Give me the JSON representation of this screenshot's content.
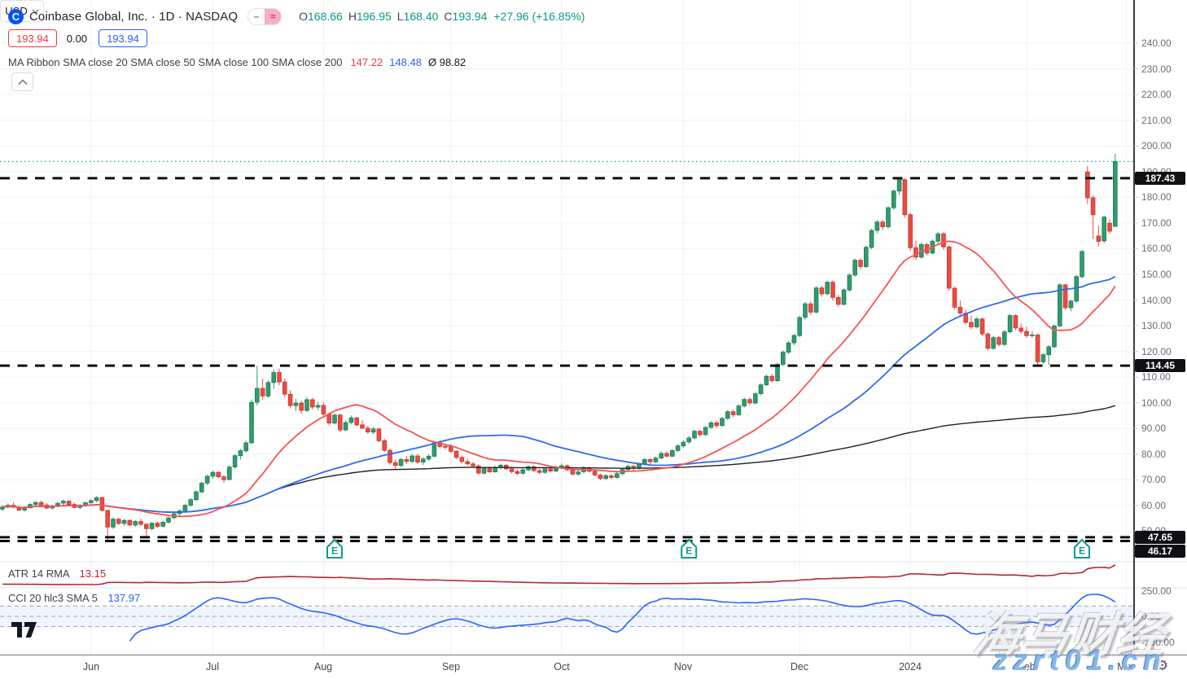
{
  "header": {
    "symbol_title": "Coinbase Global, Inc. · 1D · NASDAQ",
    "badges": {
      "minus": "–",
      "wave": "≈"
    },
    "ohlc": {
      "o_label": "O",
      "o": "168.66",
      "h_label": "H",
      "h": "196.95",
      "l_label": "L",
      "l": "168.40",
      "c_label": "C",
      "c": "193.94",
      "change": "+27.96 (+16.85%)"
    },
    "sell_price": "193.94",
    "spread": "0.00",
    "buy_price": "193.94",
    "ribbon": {
      "label": "MA Ribbon SMA close 20 SMA close 50 SMA close 100 SMA close 200",
      "sma20_value": "147.22",
      "sma50_value": "148.48",
      "avg_value": "Ø 98.82"
    }
  },
  "indicators": {
    "atr": {
      "label": "ATR 14 RMA",
      "value": "13.15"
    },
    "cci": {
      "label": "CCI 20 hlc3 SMA 5",
      "value": "137.97"
    }
  },
  "axis": {
    "currency": "USD",
    "price_ticks": [
      "240.00",
      "230.00",
      "220.00",
      "210.00",
      "200.00",
      "190.00",
      "180.00",
      "170.00",
      "160.00",
      "150.00",
      "140.00",
      "130.00",
      "120.00",
      "110.00",
      "100.00",
      "90.00",
      "80.00",
      "70.00",
      "60.00",
      "50.00"
    ],
    "level_labels": [
      "187.43",
      "114.45",
      "47.65",
      "46.17"
    ],
    "cci_ticks": [
      "250.00",
      "0.00",
      "-250.00"
    ]
  },
  "watermarks": {
    "brand": "海马财经",
    "site": "zzrt01.cn"
  },
  "colors": {
    "up": "#2f9c6e",
    "down": "#ef4a41",
    "sma20": "#f55353",
    "sma50": "#2e6bf0",
    "sma200": "#1d2026",
    "atr": "#b22833",
    "cci": "#2962ff",
    "accent": "#0052ff",
    "priceline": "#089981"
  },
  "chart_data": {
    "type": "candlestick",
    "title": "Coinbase Global, Inc.",
    "interval": "1D",
    "exchange": "NASDAQ",
    "last_bar": {
      "open": 168.66,
      "high": 196.95,
      "low": 168.4,
      "close": 193.94,
      "change": 27.96,
      "change_pct": 16.85
    },
    "levels": [
      187.43,
      114.45,
      47.65,
      46.17
    ],
    "price_line_value": 193.94,
    "y_range": [
      44,
      243
    ],
    "overlays": [
      {
        "name": "SMA 20"
      },
      {
        "name": "SMA 50"
      },
      {
        "name": "SMA 200"
      }
    ],
    "months": [
      {
        "label": "Jun",
        "i": 16
      },
      {
        "label": "Jul",
        "i": 38
      },
      {
        "label": "Aug",
        "i": 58
      },
      {
        "label": "Sep",
        "i": 81
      },
      {
        "label": "Oct",
        "i": 101
      },
      {
        "label": "Nov",
        "i": 123
      },
      {
        "label": "Dec",
        "i": 144
      },
      {
        "label": "2024",
        "i": 164
      },
      {
        "label": "Feb",
        "i": 185
      },
      {
        "label": "Mar",
        "i": 203
      }
    ],
    "earnings_indices": [
      60,
      124,
      195
    ],
    "candles": [
      [
        58.6,
        60.2,
        57.8,
        59.4
      ],
      [
        59.4,
        60.8,
        58.9,
        60.1
      ],
      [
        60.1,
        61.2,
        59.0,
        59.3
      ],
      [
        59.3,
        60.0,
        57.9,
        58.2
      ],
      [
        58.2,
        59.8,
        57.6,
        59.1
      ],
      [
        59.1,
        60.9,
        58.8,
        60.4
      ],
      [
        60.4,
        61.8,
        59.7,
        61.2
      ],
      [
        61.2,
        61.9,
        59.8,
        60.2
      ],
      [
        60.2,
        61.0,
        58.7,
        59.0
      ],
      [
        59.0,
        60.3,
        58.4,
        59.8
      ],
      [
        59.8,
        61.4,
        59.2,
        60.9
      ],
      [
        60.9,
        62.3,
        60.1,
        61.7
      ],
      [
        61.7,
        62.0,
        60.0,
        60.4
      ],
      [
        60.4,
        61.1,
        58.9,
        59.2
      ],
      [
        59.2,
        60.6,
        58.6,
        60.0
      ],
      [
        60.0,
        61.5,
        59.4,
        61.1
      ],
      [
        61.1,
        62.4,
        60.3,
        61.9
      ],
      [
        61.9,
        63.6,
        61.2,
        63.1
      ],
      [
        63.1,
        63.4,
        57.5,
        58.1
      ],
      [
        58.1,
        58.3,
        46.2,
        51.6
      ],
      [
        51.6,
        55.4,
        50.8,
        54.7
      ],
      [
        54.7,
        55.2,
        52.3,
        53.0
      ],
      [
        53.0,
        54.8,
        52.1,
        54.2
      ],
      [
        54.2,
        54.6,
        51.9,
        52.4
      ],
      [
        52.4,
        54.3,
        51.6,
        53.8
      ],
      [
        53.8,
        54.9,
        52.0,
        52.7
      ],
      [
        52.7,
        53.1,
        47.7,
        51.0
      ],
      [
        51.0,
        53.6,
        50.5,
        53.1
      ],
      [
        53.1,
        53.8,
        51.2,
        51.9
      ],
      [
        51.9,
        54.0,
        51.5,
        53.5
      ],
      [
        53.5,
        55.7,
        53.0,
        55.2
      ],
      [
        55.2,
        57.3,
        54.6,
        56.8
      ],
      [
        56.8,
        58.4,
        55.9,
        57.9
      ],
      [
        57.9,
        60.6,
        57.2,
        60.1
      ],
      [
        60.1,
        62.8,
        59.5,
        62.3
      ],
      [
        62.3,
        65.9,
        61.7,
        65.3
      ],
      [
        65.3,
        69.3,
        64.8,
        68.7
      ],
      [
        68.7,
        72.0,
        68.0,
        71.4
      ],
      [
        71.4,
        73.6,
        70.4,
        72.9
      ],
      [
        72.9,
        73.3,
        70.6,
        71.2
      ],
      [
        71.2,
        71.8,
        68.9,
        70.1
      ],
      [
        70.1,
        75.6,
        69.8,
        75.0
      ],
      [
        75.0,
        80.1,
        74.3,
        79.4
      ],
      [
        79.4,
        82.0,
        77.9,
        81.3
      ],
      [
        81.3,
        85.2,
        80.5,
        84.4
      ],
      [
        84.4,
        101.3,
        83.9,
        100.2
      ],
      [
        100.2,
        114.4,
        99.0,
        105.6
      ],
      [
        105.6,
        109.3,
        101.2,
        102.6
      ],
      [
        102.6,
        108.7,
        101.9,
        107.9
      ],
      [
        107.9,
        112.9,
        105.4,
        111.8
      ],
      [
        111.8,
        113.3,
        106.8,
        108.1
      ],
      [
        108.1,
        109.5,
        102.2,
        103.3
      ],
      [
        103.3,
        104.8,
        97.8,
        98.9
      ],
      [
        98.9,
        101.6,
        96.9,
        99.9
      ],
      [
        99.9,
        100.8,
        95.7,
        97.0
      ],
      [
        97.0,
        102.3,
        96.5,
        101.2
      ],
      [
        101.2,
        102.0,
        97.4,
        98.3
      ],
      [
        98.3,
        100.5,
        97.1,
        99.0
      ],
      [
        99.0,
        100.2,
        94.8,
        95.6
      ],
      [
        95.6,
        96.3,
        91.1,
        92.1
      ],
      [
        92.1,
        95.9,
        91.5,
        95.2
      ],
      [
        95.2,
        95.8,
        88.6,
        89.4
      ],
      [
        89.4,
        93.1,
        88.9,
        92.3
      ],
      [
        92.3,
        95.0,
        91.6,
        94.1
      ],
      [
        94.1,
        94.6,
        90.8,
        91.4
      ],
      [
        91.4,
        93.2,
        89.7,
        90.1
      ],
      [
        90.1,
        91.0,
        87.9,
        88.6
      ],
      [
        88.6,
        90.6,
        87.8,
        89.8
      ],
      [
        89.8,
        90.1,
        84.6,
        85.2
      ],
      [
        85.2,
        86.0,
        80.8,
        81.5
      ],
      [
        81.5,
        82.2,
        75.9,
        76.7
      ],
      [
        76.7,
        77.9,
        74.2,
        75.6
      ],
      [
        75.6,
        78.6,
        75.0,
        77.9
      ],
      [
        77.9,
        79.3,
        76.1,
        77.1
      ],
      [
        77.1,
        80.0,
        76.6,
        79.3
      ],
      [
        79.3,
        80.1,
        76.2,
        76.9
      ],
      [
        76.9,
        78.8,
        75.8,
        78.1
      ],
      [
        78.1,
        79.9,
        77.3,
        79.2
      ],
      [
        79.2,
        85.1,
        78.8,
        84.4
      ],
      [
        84.4,
        85.4,
        82.2,
        83.0
      ],
      [
        83.0,
        84.2,
        81.7,
        82.9
      ],
      [
        82.9,
        83.8,
        80.4,
        81.1
      ],
      [
        81.1,
        81.6,
        78.1,
        78.7
      ],
      [
        78.7,
        79.5,
        76.4,
        77.1
      ],
      [
        77.1,
        78.3,
        75.6,
        76.2
      ],
      [
        76.2,
        77.0,
        74.7,
        75.4
      ],
      [
        75.4,
        76.1,
        71.9,
        72.6
      ],
      [
        72.6,
        75.0,
        72.0,
        74.4
      ],
      [
        74.4,
        75.2,
        72.6,
        73.1
      ],
      [
        73.1,
        75.6,
        72.8,
        74.9
      ],
      [
        74.9,
        76.3,
        74.0,
        75.7
      ],
      [
        75.7,
        76.2,
        73.7,
        74.3
      ],
      [
        74.3,
        75.1,
        72.5,
        73.2
      ],
      [
        73.2,
        74.0,
        71.8,
        72.5
      ],
      [
        72.5,
        74.5,
        71.9,
        73.9
      ],
      [
        73.9,
        75.8,
        73.3,
        75.1
      ],
      [
        75.1,
        75.7,
        73.0,
        73.6
      ],
      [
        73.6,
        74.2,
        72.1,
        72.9
      ],
      [
        72.9,
        75.0,
        72.4,
        74.2
      ],
      [
        74.2,
        74.8,
        72.7,
        73.4
      ],
      [
        73.4,
        75.7,
        73.0,
        75.0
      ],
      [
        75.0,
        76.4,
        74.1,
        75.5
      ],
      [
        75.5,
        76.0,
        73.3,
        73.9
      ],
      [
        73.9,
        74.6,
        71.6,
        72.2
      ],
      [
        72.2,
        73.8,
        71.5,
        73.1
      ],
      [
        73.1,
        75.3,
        72.5,
        74.7
      ],
      [
        74.7,
        75.2,
        72.8,
        73.3
      ],
      [
        73.3,
        74.0,
        71.4,
        71.9
      ],
      [
        71.9,
        72.5,
        69.9,
        70.5
      ],
      [
        70.5,
        72.3,
        70.0,
        71.6
      ],
      [
        71.6,
        72.2,
        70.2,
        70.9
      ],
      [
        70.9,
        73.0,
        70.4,
        72.4
      ],
      [
        72.4,
        74.5,
        71.8,
        74.0
      ],
      [
        74.0,
        75.9,
        73.4,
        75.3
      ],
      [
        75.3,
        75.8,
        73.8,
        74.5
      ],
      [
        74.5,
        76.8,
        74.0,
        76.2
      ],
      [
        76.2,
        78.5,
        75.6,
        77.9
      ],
      [
        77.9,
        78.6,
        76.2,
        77.0
      ],
      [
        77.0,
        79.1,
        76.5,
        78.5
      ],
      [
        78.5,
        81.0,
        78.0,
        80.3
      ],
      [
        80.3,
        81.0,
        78.7,
        79.2
      ],
      [
        79.2,
        82.0,
        78.8,
        81.4
      ],
      [
        81.4,
        83.8,
        80.9,
        83.2
      ],
      [
        83.2,
        85.4,
        82.5,
        84.7
      ],
      [
        84.7,
        87.1,
        84.0,
        86.3
      ],
      [
        86.3,
        89.6,
        85.8,
        88.9
      ],
      [
        88.9,
        89.5,
        86.8,
        87.6
      ],
      [
        87.6,
        91.0,
        87.1,
        90.4
      ],
      [
        90.4,
        92.8,
        89.8,
        92.2
      ],
      [
        92.2,
        92.9,
        90.2,
        91.1
      ],
      [
        91.1,
        94.5,
        90.7,
        93.9
      ],
      [
        93.9,
        97.1,
        93.3,
        96.5
      ],
      [
        96.5,
        97.2,
        94.4,
        95.3
      ],
      [
        95.3,
        99.4,
        94.9,
        98.8
      ],
      [
        98.8,
        102.0,
        98.1,
        101.3
      ],
      [
        101.3,
        102.1,
        99.0,
        99.9
      ],
      [
        99.9,
        104.1,
        99.4,
        103.5
      ],
      [
        103.5,
        107.6,
        102.9,
        107.0
      ],
      [
        107.0,
        110.9,
        106.4,
        110.3
      ],
      [
        110.3,
        111.2,
        107.8,
        108.6
      ],
      [
        108.6,
        115.6,
        108.1,
        114.9
      ],
      [
        114.9,
        120.4,
        114.2,
        119.7
      ],
      [
        119.7,
        124.0,
        118.9,
        123.3
      ],
      [
        123.3,
        126.9,
        122.4,
        126.2
      ],
      [
        126.2,
        133.9,
        125.6,
        133.2
      ],
      [
        133.2,
        139.2,
        132.3,
        138.5
      ],
      [
        138.5,
        139.4,
        134.2,
        135.3
      ],
      [
        135.3,
        145.4,
        134.8,
        144.7
      ],
      [
        144.7,
        145.5,
        141.3,
        142.4
      ],
      [
        142.4,
        147.6,
        141.8,
        146.9
      ],
      [
        146.9,
        147.7,
        139.8,
        141.0
      ],
      [
        141.0,
        142.0,
        137.3,
        138.3
      ],
      [
        138.3,
        144.6,
        137.8,
        143.9
      ],
      [
        143.9,
        150.4,
        143.2,
        149.7
      ],
      [
        149.7,
        156.2,
        149.0,
        155.5
      ],
      [
        155.5,
        156.4,
        151.7,
        153.0
      ],
      [
        153.0,
        161.2,
        152.4,
        160.5
      ],
      [
        160.5,
        167.8,
        159.8,
        167.1
      ],
      [
        167.1,
        171.1,
        165.9,
        170.4
      ],
      [
        170.4,
        171.2,
        167.2,
        168.5
      ],
      [
        168.5,
        176.5,
        167.9,
        175.9
      ],
      [
        175.9,
        183.1,
        175.1,
        182.4
      ],
      [
        182.4,
        187.4,
        180.8,
        186.9
      ],
      [
        186.9,
        187.3,
        172.1,
        173.2
      ],
      [
        173.2,
        174.0,
        159.3,
        160.4
      ],
      [
        160.4,
        163.0,
        155.6,
        156.7
      ],
      [
        156.7,
        162.4,
        156.1,
        161.6
      ],
      [
        161.6,
        162.2,
        157.4,
        158.3
      ],
      [
        158.3,
        163.6,
        157.7,
        162.9
      ],
      [
        162.9,
        166.5,
        161.8,
        165.8
      ],
      [
        165.8,
        166.4,
        159.6,
        160.7
      ],
      [
        160.7,
        161.2,
        143.5,
        144.6
      ],
      [
        144.6,
        145.3,
        136.2,
        137.2
      ],
      [
        137.2,
        139.8,
        133.8,
        134.9
      ],
      [
        134.9,
        136.1,
        130.4,
        131.3
      ],
      [
        131.3,
        133.9,
        128.6,
        129.5
      ],
      [
        129.5,
        133.3,
        128.9,
        132.6
      ],
      [
        132.6,
        133.2,
        125.9,
        126.8
      ],
      [
        126.8,
        127.4,
        120.3,
        121.2
      ],
      [
        121.2,
        126.1,
        120.6,
        125.4
      ],
      [
        125.4,
        126.0,
        121.8,
        122.7
      ],
      [
        122.7,
        128.3,
        122.2,
        127.6
      ],
      [
        127.6,
        134.6,
        127.0,
        133.9
      ],
      [
        133.9,
        134.5,
        128.2,
        129.1
      ],
      [
        129.1,
        130.9,
        126.9,
        127.8
      ],
      [
        127.8,
        129.6,
        125.2,
        126.1
      ],
      [
        126.1,
        128.0,
        125.4,
        126.4
      ],
      [
        126.4,
        127.0,
        114.5,
        115.9
      ],
      [
        115.9,
        119.3,
        115.2,
        118.7
      ],
      [
        118.7,
        122.4,
        114.6,
        121.8
      ],
      [
        121.8,
        130.6,
        121.2,
        129.9
      ],
      [
        129.9,
        146.6,
        129.3,
        145.9
      ],
      [
        145.9,
        146.3,
        136.1,
        137.0
      ],
      [
        137.0,
        140.1,
        135.6,
        139.6
      ],
      [
        139.6,
        149.8,
        139.0,
        149.1
      ],
      [
        149.1,
        159.6,
        148.4,
        158.9
      ],
      [
        189.9,
        192.2,
        177.5,
        179.8
      ],
      [
        179.8,
        180.9,
        163.7,
        173.2
      ],
      [
        164.9,
        169.0,
        160.9,
        162.8
      ],
      [
        163.0,
        172.9,
        162.2,
        172.3
      ],
      [
        169.9,
        171.3,
        165.9,
        166.8
      ],
      [
        168.66,
        196.95,
        168.4,
        193.94
      ]
    ]
  }
}
